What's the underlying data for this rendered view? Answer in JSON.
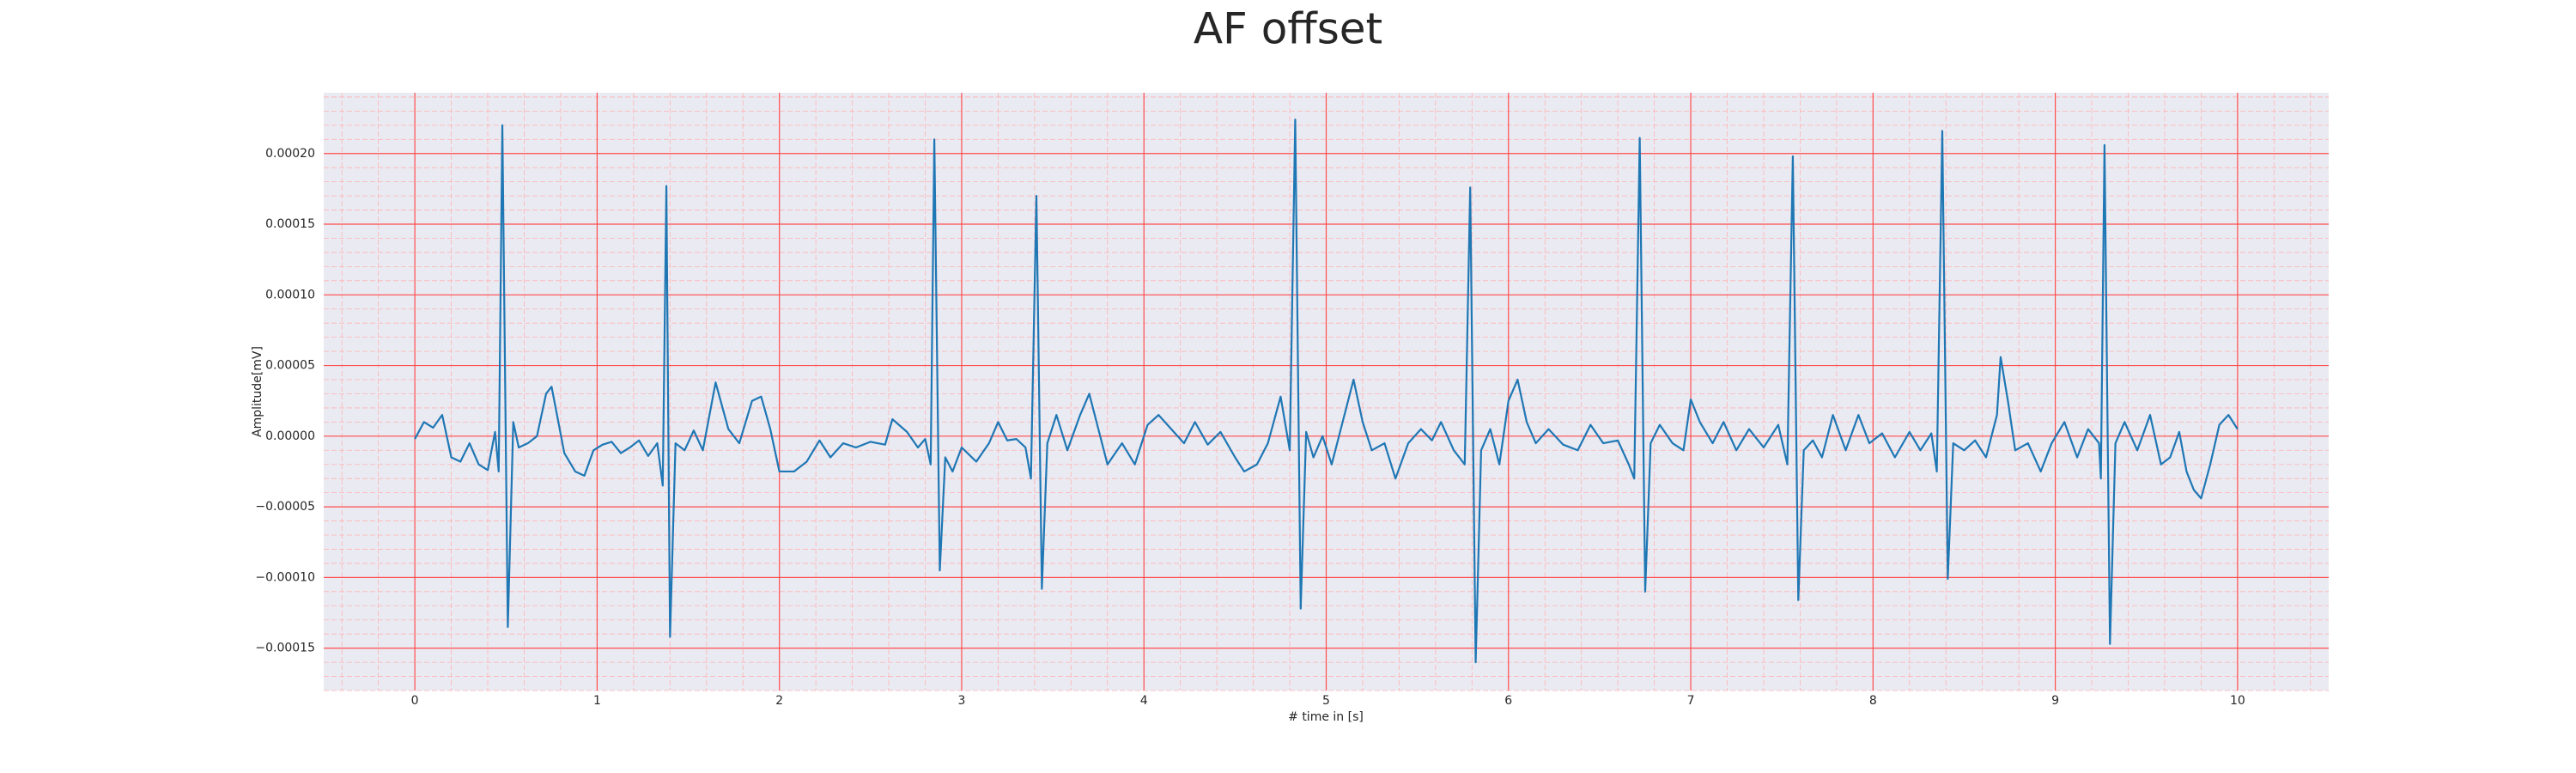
{
  "chart_data": {
    "type": "line",
    "title": "AF offset",
    "x_label": "# time in [s]",
    "y_label": "Amplitude[mV]",
    "color": "#1f77b4",
    "grid": true,
    "minor_grid": true,
    "xlim": [
      -0.5,
      10.5
    ],
    "xticks": [
      0,
      1,
      2,
      3,
      4,
      5,
      6,
      7,
      8,
      9,
      10
    ],
    "ylim": [
      -0.00018,
      0.000243
    ],
    "yticks": [
      {
        "value": -0.00015,
        "label": "−0.00015"
      },
      {
        "value": -0.0001,
        "label": "−0.00010"
      },
      {
        "value": -5e-05,
        "label": "−0.00005"
      },
      {
        "value": 0,
        "label": "0.00000"
      },
      {
        "value": 5e-05,
        "label": "0.00005"
      },
      {
        "value": 0.0001,
        "label": "0.00010"
      },
      {
        "value": 0.00015,
        "label": "0.00015"
      },
      {
        "value": 0.0002,
        "label": "0.00020"
      }
    ],
    "x": [
      0.0,
      0.05,
      0.1,
      0.15,
      0.2,
      0.25,
      0.3,
      0.35,
      0.4,
      0.44,
      0.46,
      0.48,
      0.51,
      0.54,
      0.57,
      0.62,
      0.67,
      0.72,
      0.75,
      0.78,
      0.82,
      0.88,
      0.93,
      0.98,
      1.03,
      1.08,
      1.13,
      1.18,
      1.23,
      1.28,
      1.33,
      1.36,
      1.38,
      1.4,
      1.43,
      1.48,
      1.53,
      1.58,
      1.65,
      1.72,
      1.78,
      1.85,
      1.9,
      1.95,
      2.0,
      2.08,
      2.15,
      2.22,
      2.28,
      2.35,
      2.42,
      2.5,
      2.58,
      2.62,
      2.7,
      2.76,
      2.8,
      2.83,
      2.85,
      2.88,
      2.91,
      2.95,
      3.0,
      3.08,
      3.15,
      3.2,
      3.25,
      3.3,
      3.35,
      3.38,
      3.41,
      3.44,
      3.47,
      3.52,
      3.58,
      3.65,
      3.7,
      3.75,
      3.8,
      3.88,
      3.95,
      4.02,
      4.08,
      4.15,
      4.22,
      4.28,
      4.35,
      4.42,
      4.5,
      4.55,
      4.62,
      4.68,
      4.75,
      4.8,
      4.83,
      4.86,
      4.89,
      4.93,
      4.98,
      5.03,
      5.1,
      5.15,
      5.2,
      5.25,
      5.32,
      5.38,
      5.45,
      5.52,
      5.58,
      5.63,
      5.7,
      5.76,
      5.79,
      5.82,
      5.85,
      5.9,
      5.95,
      6.0,
      6.05,
      6.1,
      6.15,
      6.22,
      6.3,
      6.38,
      6.45,
      6.52,
      6.6,
      6.66,
      6.69,
      6.72,
      6.75,
      6.78,
      6.83,
      6.9,
      6.96,
      7.0,
      7.05,
      7.12,
      7.18,
      7.25,
      7.32,
      7.4,
      7.48,
      7.53,
      7.56,
      7.59,
      7.62,
      7.67,
      7.72,
      7.78,
      7.85,
      7.92,
      7.98,
      8.05,
      8.12,
      8.2,
      8.26,
      8.32,
      8.35,
      8.38,
      8.41,
      8.44,
      8.5,
      8.56,
      8.62,
      8.68,
      8.7,
      8.74,
      8.78,
      8.85,
      8.92,
      8.98,
      9.05,
      9.12,
      9.18,
      9.24,
      9.25,
      9.27,
      9.3,
      9.33,
      9.38,
      9.45,
      9.52,
      9.58,
      9.63,
      9.68,
      9.72,
      9.76,
      9.8,
      9.85,
      9.9,
      9.95,
      10.0
    ],
    "values": [
      -2e-06,
      1e-05,
      6e-06,
      1.5e-05,
      -1.5e-05,
      -1.8e-05,
      -5e-06,
      -2e-05,
      -2.4e-05,
      3e-06,
      -2.5e-05,
      0.00022,
      -0.000135,
      1e-05,
      -8e-06,
      -5e-06,
      0,
      3e-05,
      3.5e-05,
      1.5e-05,
      -1.2e-05,
      -2.5e-05,
      -2.8e-05,
      -1e-05,
      -6e-06,
      -4e-06,
      -1.2e-05,
      -8e-06,
      -3e-06,
      -1.4e-05,
      -5e-06,
      -3.5e-05,
      0.000177,
      -0.000142,
      -5e-06,
      -1e-05,
      4e-06,
      -1e-05,
      3.8e-05,
      5e-06,
      -5e-06,
      2.5e-05,
      2.8e-05,
      5e-06,
      -2.5e-05,
      -2.5e-05,
      -1.8e-05,
      -3e-06,
      -1.5e-05,
      -5e-06,
      -8e-06,
      -4e-06,
      -6e-06,
      1.2e-05,
      3e-06,
      -8e-06,
      -2e-06,
      -2e-05,
      0.00021,
      -9.5e-05,
      -1.5e-05,
      -2.5e-05,
      -8e-06,
      -1.8e-05,
      -5e-06,
      1e-05,
      -3e-06,
      -2e-06,
      -8e-06,
      -3e-05,
      0.00017,
      -0.000108,
      -5e-06,
      1.5e-05,
      -1e-05,
      1.5e-05,
      3e-05,
      5e-06,
      -2e-05,
      -5e-06,
      -2e-05,
      8e-06,
      1.5e-05,
      5e-06,
      -5e-06,
      1e-05,
      -6e-06,
      3e-06,
      -1.5e-05,
      -2.5e-05,
      -2e-05,
      -5e-06,
      2.8e-05,
      -1e-05,
      0.000224,
      -0.000122,
      3e-06,
      -1.5e-05,
      0,
      -2e-05,
      1.5e-05,
      4e-05,
      1e-05,
      -1e-05,
      -5e-06,
      -3e-05,
      -5e-06,
      5e-06,
      -3e-06,
      1e-05,
      -1e-05,
      -2e-05,
      0.000176,
      -0.00016,
      -1e-05,
      5e-06,
      -2e-05,
      2.5e-05,
      4e-05,
      1e-05,
      -5e-06,
      5e-06,
      -6e-06,
      -1e-05,
      8e-06,
      -5e-06,
      -3e-06,
      -2e-05,
      -3e-05,
      0.000211,
      -0.00011,
      -5e-06,
      8e-06,
      -5e-06,
      -1e-05,
      2.6e-05,
      1e-05,
      -5e-06,
      1e-05,
      -1e-05,
      5e-06,
      -8e-06,
      8e-06,
      -2e-05,
      0.000198,
      -0.000116,
      -1e-05,
      -3e-06,
      -1.5e-05,
      1.5e-05,
      -1e-05,
      1.5e-05,
      -5e-06,
      2e-06,
      -1.5e-05,
      3e-06,
      -1e-05,
      2e-06,
      -2.5e-05,
      0.000216,
      -0.000101,
      -5e-06,
      -1e-05,
      -3e-06,
      -1.5e-05,
      1.5e-05,
      5.6e-05,
      2.5e-05,
      -1e-05,
      -5e-06,
      -2.5e-05,
      -5e-06,
      1e-05,
      -1.5e-05,
      5e-06,
      -5e-06,
      -3e-05,
      0.000206,
      -0.000147,
      -5e-06,
      1e-05,
      -1e-05,
      1.5e-05,
      -2e-05,
      -1.5e-05,
      3e-06,
      -2.5e-05,
      -3.8e-05,
      -4.4e-05,
      -2e-05,
      8e-06,
      1.5e-05,
      5e-06
    ]
  }
}
